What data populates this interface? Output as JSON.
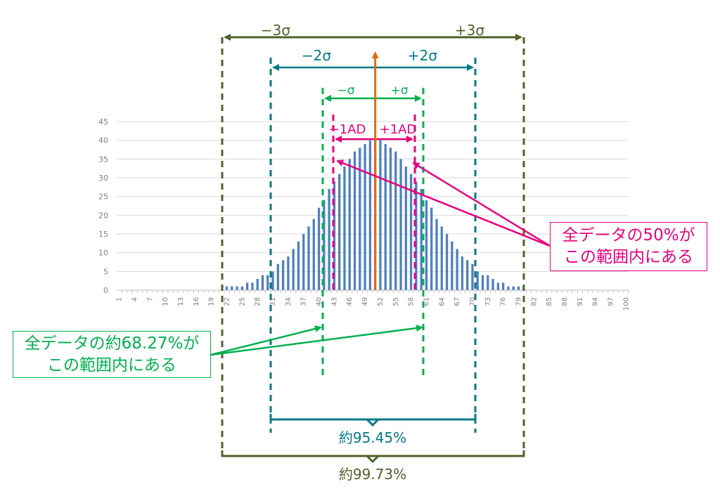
{
  "colors": {
    "bar": "#4f7fbf",
    "mean_line": "#e36c0a",
    "ad": "#e6007e",
    "sigma1": "#00b050",
    "sigma2": "#007a87",
    "sigma3": "#4f6228",
    "grid": "#d9d9d9",
    "axis_text": "#808080"
  },
  "chart_data": {
    "type": "bar",
    "ylim": [
      0,
      45
    ],
    "yticks": [
      0,
      5,
      10,
      15,
      20,
      25,
      30,
      35,
      40,
      45
    ],
    "x": [
      1,
      2,
      3,
      4,
      5,
      6,
      7,
      8,
      9,
      10,
      11,
      12,
      13,
      14,
      15,
      16,
      17,
      18,
      19,
      20,
      21,
      22,
      23,
      24,
      25,
      26,
      27,
      28,
      29,
      30,
      31,
      32,
      33,
      34,
      35,
      36,
      37,
      38,
      39,
      40,
      41,
      42,
      43,
      44,
      45,
      46,
      47,
      48,
      49,
      50,
      51,
      52,
      53,
      54,
      55,
      56,
      57,
      58,
      59,
      60,
      61,
      62,
      63,
      64,
      65,
      66,
      67,
      68,
      69,
      70,
      71,
      72,
      73,
      74,
      75,
      76,
      77,
      78,
      79,
      80,
      81,
      82,
      83,
      84,
      85,
      86,
      87,
      88,
      89,
      90,
      91,
      92,
      93,
      94,
      95,
      96,
      97,
      98,
      99,
      100
    ],
    "xtick_labels": [
      "1",
      "4",
      "7",
      "10",
      "13",
      "16",
      "19",
      "22",
      "25",
      "28",
      "31",
      "34",
      "37",
      "40",
      "43",
      "46",
      "49",
      "52",
      "55",
      "58",
      "61",
      "64",
      "67",
      "70",
      "73",
      "76",
      "79",
      "82",
      "85",
      "88",
      "91",
      "94",
      "97",
      "100"
    ],
    "values": [
      0,
      0,
      0,
      0,
      0,
      0,
      0,
      0,
      0,
      0,
      0,
      0,
      0,
      0,
      0,
      0,
      0,
      0,
      0,
      0,
      0,
      1,
      1,
      1,
      1,
      2,
      2,
      3,
      4,
      4,
      5,
      7,
      8,
      9,
      11,
      13,
      15,
      17,
      19,
      22,
      24,
      27,
      29,
      31,
      33,
      35,
      37,
      38,
      39,
      40,
      40,
      40,
      39,
      38,
      37,
      35,
      33,
      31,
      29,
      27,
      24,
      22,
      19,
      17,
      15,
      13,
      11,
      9,
      8,
      7,
      5,
      4,
      4,
      3,
      2,
      2,
      1,
      1,
      1,
      1,
      0,
      0,
      0,
      0,
      0,
      0,
      0,
      0,
      0,
      0,
      0,
      0,
      0,
      0,
      0,
      0,
      0,
      0,
      0,
      0
    ],
    "mean_x": 51,
    "annotations": {
      "minus_3sigma": "−3σ",
      "plus_3sigma": "+3σ",
      "minus_2sigma": "−2σ",
      "plus_2sigma": "+2σ",
      "minus_1sigma": "−σ",
      "plus_1sigma": "+σ",
      "minus_1ad": "−1AD",
      "plus_1ad": "+1AD",
      "pct_2sigma": "約95.45%",
      "pct_3sigma": "約99.73%"
    }
  },
  "callouts": {
    "ad": {
      "line1": "全データの50%が",
      "line2": "この範囲内にある"
    },
    "sigma1": {
      "line1": "全データの約68.27%が",
      "line2": "この範囲内にある"
    }
  }
}
